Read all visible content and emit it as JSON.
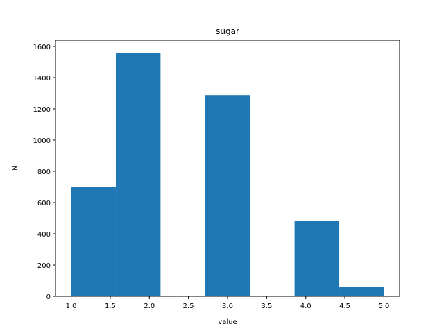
{
  "chart_data": {
    "type": "bar",
    "title": "sugar",
    "xlabel": "value",
    "ylabel": "N",
    "xlim": [
      0.8,
      5.2
    ],
    "ylim": [
      0,
      1640
    ],
    "grid": false,
    "bar_color": "#1f77b4",
    "bins": [
      {
        "x0": 1.0,
        "x1": 1.5714,
        "value": 700
      },
      {
        "x0": 1.5714,
        "x1": 2.1429,
        "value": 1558
      },
      {
        "x0": 2.1429,
        "x1": 2.7143,
        "value": 0
      },
      {
        "x0": 2.7143,
        "x1": 3.2857,
        "value": 1288
      },
      {
        "x0": 3.2857,
        "x1": 3.8571,
        "value": 0
      },
      {
        "x0": 3.8571,
        "x1": 4.4286,
        "value": 482
      },
      {
        "x0": 4.4286,
        "x1": 5.0,
        "value": 62
      }
    ],
    "xticks": [
      1.0,
      1.5,
      2.0,
      2.5,
      3.0,
      3.5,
      4.0,
      4.5,
      5.0
    ],
    "xtick_labels": [
      "1.0",
      "1.5",
      "2.0",
      "2.5",
      "3.0",
      "3.5",
      "4.0",
      "4.5",
      "5.0"
    ],
    "yticks": [
      0,
      200,
      400,
      600,
      800,
      1000,
      1200,
      1400,
      1600
    ],
    "ytick_labels": [
      "0",
      "200",
      "400",
      "600",
      "800",
      "1000",
      "1200",
      "1400",
      "1600"
    ]
  }
}
